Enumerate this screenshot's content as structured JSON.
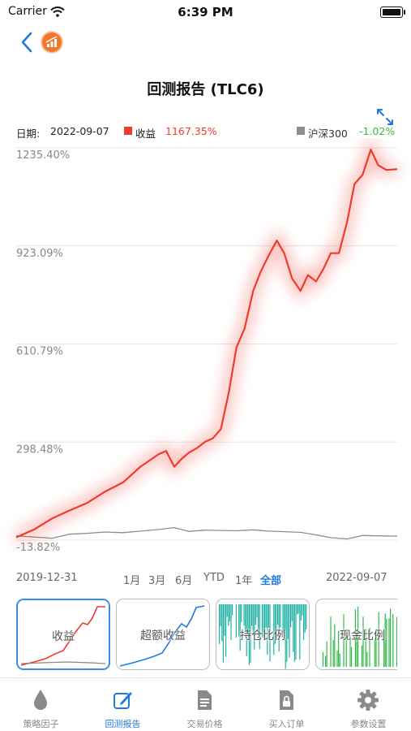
{
  "status_bar": {
    "carrier": "Carrier",
    "time": "6:39 PM"
  },
  "header": {
    "title": "回测报告 (TLC6)"
  },
  "legend": {
    "date_label": "日期:",
    "date_value": "2022-09-07",
    "return_label": "收益",
    "return_value": "1167.35%",
    "return_color": "#ee3b2e",
    "benchmark_label": "沪深300",
    "benchmark_value": "-1.02%",
    "benchmark_color": "#8d8d8d",
    "benchmark_value_color": "#3cb83c"
  },
  "chart_data": {
    "type": "line",
    "title": "",
    "xlabel": "",
    "ylabel": "",
    "x_start": "2019-12-31",
    "x_end": "2022-09-07",
    "y_tick_labels": [
      "1235.40%",
      "923.09%",
      "610.79%",
      "298.48%",
      "-13.82%"
    ],
    "y_ticks": [
      1235.4,
      923.09,
      610.79,
      298.48,
      -13.82
    ],
    "ylim": [
      -13.82,
      1235.4
    ],
    "grid": true,
    "series": [
      {
        "name": "收益",
        "color": "#ee3b2e",
        "x": [
          "2019-12-31",
          "2020-02-15",
          "2020-04-01",
          "2020-05-15",
          "2020-07-01",
          "2020-08-15",
          "2020-10-01",
          "2020-11-15",
          "2021-01-01",
          "2021-01-20",
          "2021-02-10",
          "2021-03-01",
          "2021-03-20",
          "2021-04-10",
          "2021-05-01",
          "2021-05-20",
          "2021-06-10",
          "2021-07-01",
          "2021-07-20",
          "2021-08-10",
          "2021-09-01",
          "2021-09-20",
          "2021-10-10",
          "2021-11-01",
          "2021-11-20",
          "2021-12-10",
          "2022-01-01",
          "2022-01-20",
          "2022-02-10",
          "2022-03-01",
          "2022-03-20",
          "2022-04-10",
          "2022-05-01",
          "2022-05-20",
          "2022-06-10",
          "2022-07-01",
          "2022-07-20",
          "2022-08-10",
          "2022-09-07"
        ],
        "values": [
          -5,
          20,
          55,
          80,
          105,
          140,
          170,
          220,
          260,
          270,
          220,
          245,
          265,
          280,
          300,
          310,
          340,
          460,
          600,
          660,
          780,
          840,
          890,
          940,
          900,
          820,
          780,
          830,
          810,
          850,
          900,
          900,
          1000,
          1120,
          1150,
          1230,
          1180,
          1165,
          1167.35
        ]
      },
      {
        "name": "沪深300",
        "color": "#8d8d8d",
        "x": [
          "2019-12-31",
          "2020-02-15",
          "2020-04-01",
          "2020-05-15",
          "2020-07-01",
          "2020-08-15",
          "2020-10-01",
          "2020-11-15",
          "2021-01-01",
          "2021-02-10",
          "2021-03-20",
          "2021-05-01",
          "2021-06-10",
          "2021-07-20",
          "2021-09-01",
          "2021-10-10",
          "2021-11-20",
          "2022-01-01",
          "2022-02-10",
          "2022-03-20",
          "2022-05-01",
          "2022-06-10",
          "2022-07-20",
          "2022-09-07"
        ],
        "values": [
          0,
          -4,
          -8,
          5,
          8,
          12,
          10,
          15,
          20,
          26,
          14,
          18,
          17,
          16,
          19,
          15,
          13,
          11,
          3,
          -6,
          -10,
          1,
          0,
          -1.02
        ]
      }
    ]
  },
  "ranges": {
    "start_date": "2019-12-31",
    "items": [
      "1月",
      "3月",
      "6月",
      "YTD",
      "1年",
      "全部"
    ],
    "active": "全部",
    "end_date": "2022-09-07"
  },
  "thumbnails": [
    {
      "label": "收益",
      "selected": true
    },
    {
      "label": "超额收益",
      "selected": false
    },
    {
      "label": "持仓比例",
      "selected": false
    },
    {
      "label": "现金比例",
      "selected": false
    }
  ],
  "tabs": [
    {
      "label": "策略因子",
      "icon": "drop-icon"
    },
    {
      "label": "回测报告",
      "icon": "edit-icon",
      "active": true
    },
    {
      "label": "交易价格",
      "icon": "document-icon"
    },
    {
      "label": "买入订单",
      "icon": "lock-document-icon"
    },
    {
      "label": "参数设置",
      "icon": "gear-icon"
    }
  ]
}
